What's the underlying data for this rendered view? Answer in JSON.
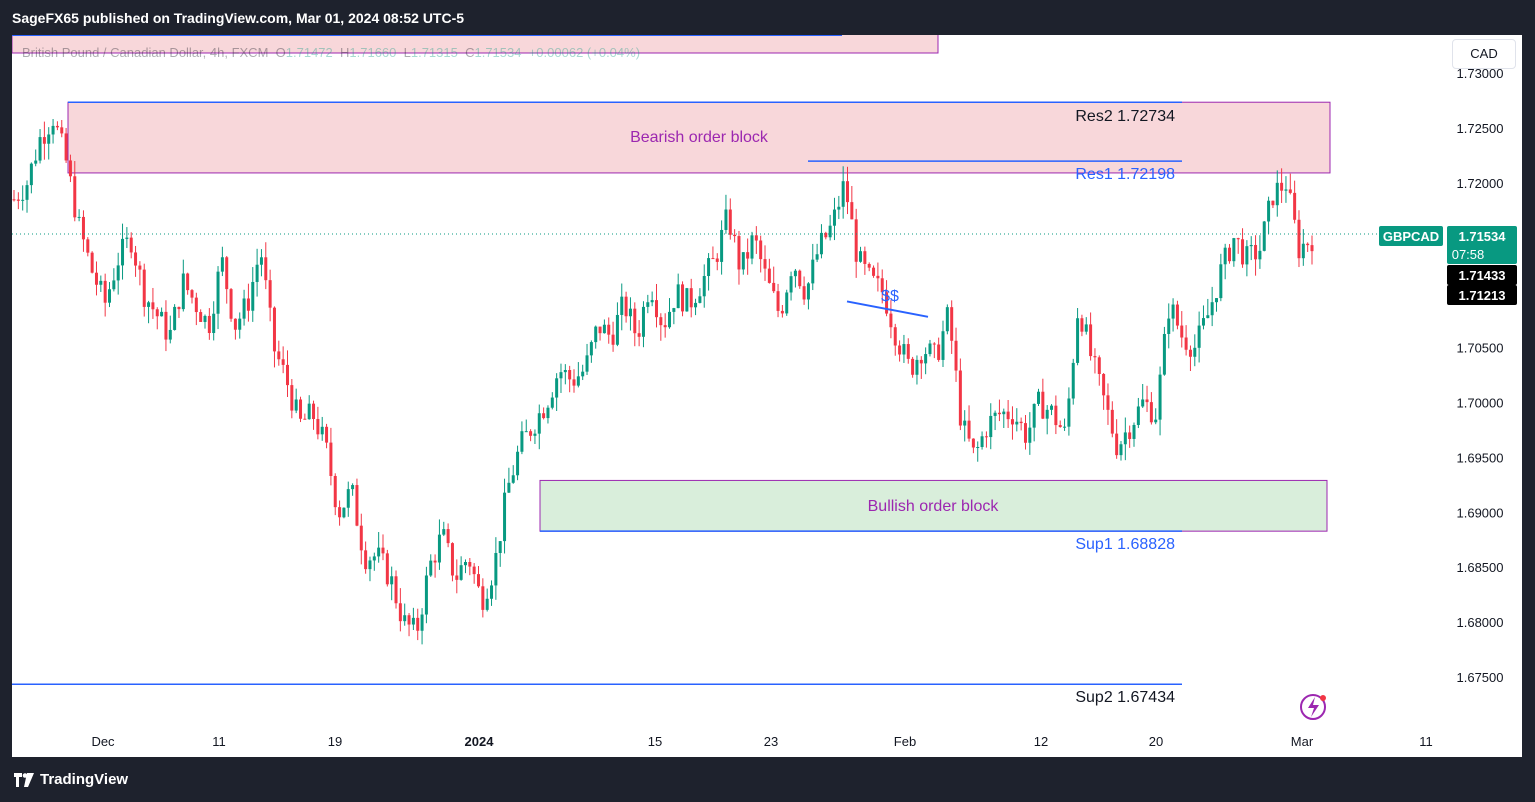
{
  "header": {
    "published": "SageFX65 published on TradingView.com, Mar 01, 2024 08:52 UTC-5"
  },
  "legend": {
    "symbol": "British Pound / Canadian Dollar, 4h, FXCM",
    "o_label": "O",
    "o": "1.71472",
    "h_label": "H",
    "h": "1.71660",
    "l_label": "L",
    "l": "1.71315",
    "c_label": "C",
    "c": "1.71534",
    "chg": "+0.00062 (+0.04%)"
  },
  "currency_button": "CAD",
  "footer": {
    "brand": "TradingView"
  },
  "colors": {
    "up": "#089981",
    "down": "#f23645",
    "line": "#2962ff",
    "bear_fill": "#f8d7da",
    "bull_fill": "#d9eedb",
    "zone_border": "#9c27b0",
    "annotation": "#9c27b0",
    "blue_text": "#2962ff"
  },
  "chart_data": {
    "type": "candlestick",
    "symbol": "GBPCAD",
    "timeframe": "4h",
    "ylim": [
      1.671,
      1.735
    ],
    "y_ticks": [
      "1.67500",
      "1.68000",
      "1.68500",
      "1.69000",
      "1.69500",
      "1.70000",
      "1.70500",
      "1.71000",
      "1.71500",
      "1.72000",
      "1.72500",
      "1.73000"
    ],
    "x_ticks": [
      "Dec",
      "11",
      "19",
      "2024",
      "15",
      "23",
      "Feb",
      "12",
      "20",
      "Mar",
      "11"
    ],
    "last_price": "1.71534",
    "countdown": "07:58",
    "price_labels": [
      "1.71433",
      "1.71213"
    ],
    "symbol_tag": "GBPCAD",
    "levels": [
      {
        "name": "Res2",
        "label": "Res2 1.72734",
        "value": 1.72734
      },
      {
        "name": "Res1",
        "label": "Res1 1.72198",
        "value": 1.72198
      },
      {
        "name": "Sup1",
        "label": "Sup1 1.68828",
        "value": 1.68828
      },
      {
        "name": "Sup2",
        "label": "Sup2 1.67434",
        "value": 1.67434
      }
    ],
    "zones": [
      {
        "label": "Bearish order block",
        "top": 1.72734,
        "bottom": 1.7209,
        "kind": "bear"
      },
      {
        "label": "Bullish order block",
        "top": 1.6929,
        "bottom": 1.68828,
        "kind": "bull"
      }
    ],
    "annotation": {
      "label": "$$",
      "from": 1.7092,
      "to": 1.7078
    },
    "price_path": [
      1.7185,
      1.72,
      1.724,
      1.726,
      1.722,
      1.716,
      1.712,
      1.709,
      1.713,
      1.715,
      1.71,
      1.708,
      1.706,
      1.711,
      1.709,
      1.707,
      1.713,
      1.707,
      1.709,
      1.714,
      1.705,
      1.702,
      1.698,
      1.699,
      1.696,
      1.69,
      1.692,
      1.686,
      1.686,
      1.684,
      1.68,
      1.679,
      1.685,
      1.688,
      1.684,
      1.686,
      1.682,
      1.685,
      1.692,
      1.696,
      1.698,
      1.7,
      1.703,
      1.702,
      1.703,
      1.707,
      1.706,
      1.709,
      1.706,
      1.711,
      1.707,
      1.71,
      1.709,
      1.711,
      1.713,
      1.717,
      1.712,
      1.715,
      1.711,
      1.708,
      1.713,
      1.71,
      1.714,
      1.716,
      1.72,
      1.713,
      1.711,
      1.71,
      1.706,
      1.703,
      1.705,
      1.704,
      1.708,
      1.698,
      1.695,
      1.698,
      1.699,
      1.699,
      1.697,
      1.7,
      1.699,
      1.697,
      1.709,
      1.704,
      1.7,
      1.696,
      1.698,
      1.7,
      1.699,
      1.709,
      1.706,
      1.705,
      1.708,
      1.712,
      1.715,
      1.713,
      1.714,
      1.719,
      1.72,
      1.714,
      1.715
    ]
  }
}
